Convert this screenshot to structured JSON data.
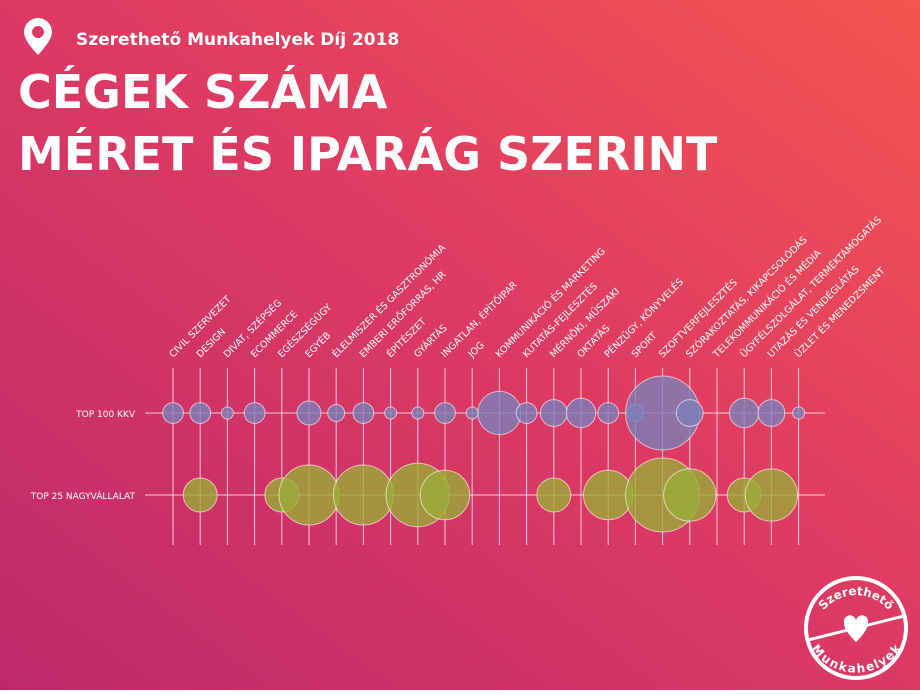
{
  "chart_data": {
    "type": "bubble",
    "supertitle": "Szerethető Munkahelyek Díj 2018",
    "title": [
      "CÉGEK SZÁMA",
      "MÉRET ÉS IPARÁG SZERINT"
    ],
    "categories": [
      "CIVIL SZERVEZET",
      "DESIGN",
      "DIVAT, SZÉPSÉG",
      "ECOMMERCE",
      "EGÉSZSÉGÜGY",
      "EGYÉB",
      "ÉLELMISZER ÉS GASZTRONÓMIA",
      "EMBERI ERŐFORRÁS, HR",
      "ÉPÍTÉSZET",
      "GYÁRTÁS",
      "INGATLAN, ÉPÍTŐIPAR",
      "JOG",
      "KOMMUNIKÁCIÓ ÉS MARKETING",
      "KUTATÁS-FEJLESZTÉS",
      "MÉRNÖKI, MŰSZAKI",
      "OKTATÁS",
      "PÉNZÜGY, KÖNYVELÉS",
      "SPORT",
      "SZOFTVERFEJLESZTÉS",
      "SZÓRAKOZTATÁS, KIKAPCSOLÓDÁS",
      "TELEKOMMUNIKÁCIÓ ÉS MÉDIA",
      "ÜGYFÉLSZOLGÁLAT, TERMÉKTÁMOGATÁS",
      "UTAZÁS ÉS VENDÉGLÁTÁS",
      "ÜZLET ÉS MENEDZSMENT"
    ],
    "series": [
      {
        "name": "TOP 100 KKV",
        "color": "#7a7fb8",
        "values": [
          3,
          3,
          1,
          3,
          null,
          4,
          2,
          3,
          1,
          1,
          3,
          1,
          13,
          3,
          5,
          6,
          3,
          2,
          38,
          5,
          null,
          6,
          5,
          1
        ]
      },
      {
        "name": "TOP 25 NAGYVÁLLALAT",
        "color": "#9aab38",
        "values": [
          null,
          8,
          null,
          null,
          8,
          25,
          null,
          25,
          null,
          28,
          17,
          null,
          null,
          null,
          8,
          null,
          17,
          null,
          38,
          19,
          null,
          8,
          19,
          null
        ]
      }
    ],
    "logo": [
      "Szerethető",
      "Munkahelyek"
    ]
  }
}
